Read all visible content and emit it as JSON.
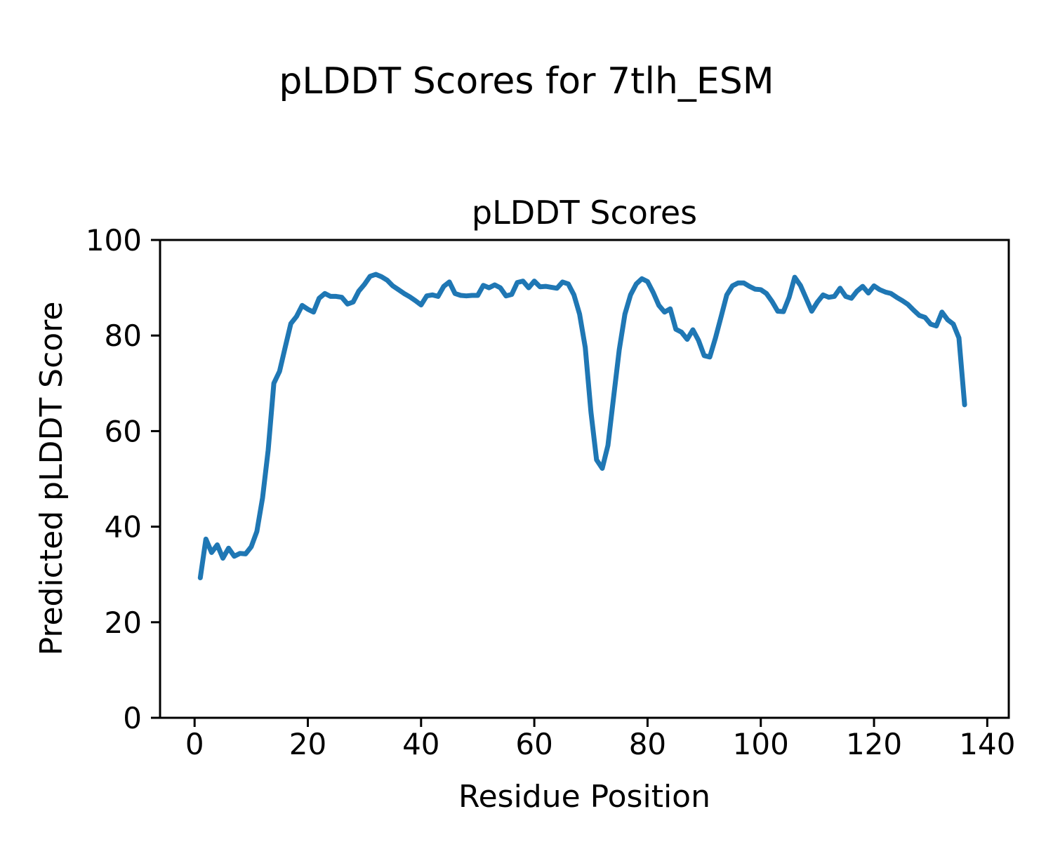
{
  "figure_title": "pLDDT Scores for 7tlh_ESM",
  "chart_data": {
    "type": "line",
    "title": "pLDDT Scores",
    "xlabel": "Residue Position",
    "ylabel": "Predicted pLDDT Score",
    "xlim": [
      -6.1,
      143.8
    ],
    "ylim": [
      0,
      100
    ],
    "xticks": [
      0,
      20,
      40,
      60,
      80,
      100,
      120,
      140
    ],
    "yticks": [
      0,
      20,
      40,
      60,
      80,
      100
    ],
    "grid": false,
    "legend": false,
    "line_color": "#1f77b4",
    "series_name": "pLDDT",
    "x_start": 1,
    "x_step": 1,
    "values": [
      29.3,
      37.4,
      34.6,
      36.2,
      33.4,
      35.5,
      33.8,
      34.4,
      34.3,
      35.8,
      39.0,
      46.0,
      56.0,
      70.0,
      72.5,
      77.5,
      82.5,
      84.0,
      86.3,
      85.5,
      84.9,
      87.8,
      88.8,
      88.2,
      88.2,
      88.0,
      86.6,
      87.0,
      89.3,
      90.7,
      92.4,
      92.8,
      92.3,
      91.6,
      90.4,
      89.6,
      88.8,
      88.1,
      87.3,
      86.4,
      88.3,
      88.5,
      88.2,
      90.3,
      91.2,
      88.8,
      88.4,
      88.3,
      88.4,
      88.4,
      90.5,
      90.0,
      90.6,
      90.0,
      88.3,
      88.6,
      91.1,
      91.4,
      90.0,
      91.4,
      90.2,
      90.3,
      90.1,
      89.9,
      91.2,
      90.8,
      88.5,
      84.5,
      77.5,
      64.0,
      54.0,
      52.2,
      57.0,
      67.0,
      77.0,
      84.5,
      88.5,
      90.8,
      91.9,
      91.3,
      89.0,
      86.3,
      84.9,
      85.6,
      81.3,
      80.7,
      79.2,
      81.2,
      79.0,
      75.8,
      75.5,
      79.5,
      84.0,
      88.5,
      90.4,
      91.0,
      91.0,
      90.3,
      89.7,
      89.6,
      88.8,
      87.1,
      85.1,
      85.0,
      88.0,
      92.2,
      90.5,
      87.8,
      85.1,
      87.0,
      88.5,
      88.0,
      88.2,
      89.9,
      88.2,
      87.8,
      89.3,
      90.3,
      88.9,
      90.4,
      89.6,
      89.1,
      88.8,
      88.0,
      87.3,
      86.5,
      85.3,
      84.2,
      83.8,
      82.4,
      82.0,
      84.9,
      83.3,
      82.4,
      79.5,
      65.5
    ]
  }
}
